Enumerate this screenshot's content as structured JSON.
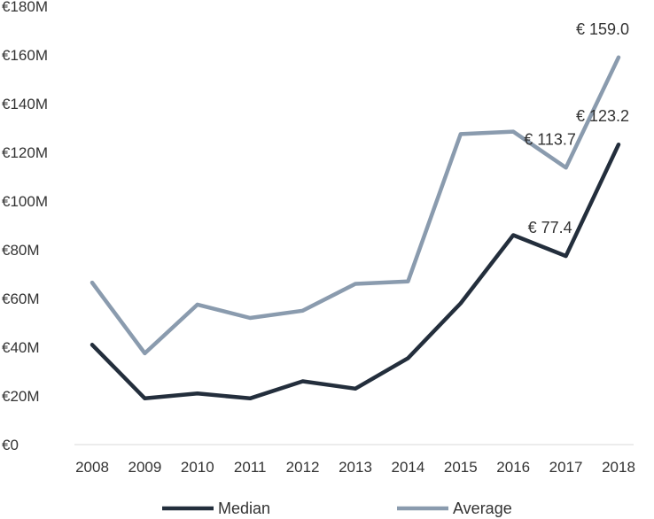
{
  "chart_data": {
    "type": "line",
    "title": "",
    "xlabel": "",
    "ylabel": "",
    "x": [
      "2008",
      "2009",
      "2010",
      "2011",
      "2012",
      "2013",
      "2014",
      "2015",
      "2016",
      "2017",
      "2018"
    ],
    "ylim": [
      0,
      180
    ],
    "y_ticks": [
      {
        "value": 0,
        "label": "€0"
      },
      {
        "value": 20,
        "label": "€20M"
      },
      {
        "value": 40,
        "label": "€40M"
      },
      {
        "value": 60,
        "label": "€60M"
      },
      {
        "value": 80,
        "label": "€80M"
      },
      {
        "value": 100,
        "label": "€100M"
      },
      {
        "value": 120,
        "label": "€120M"
      },
      {
        "value": 140,
        "label": "€140M"
      },
      {
        "value": 160,
        "label": "€160M"
      },
      {
        "value": 180,
        "label": "€180M"
      }
    ],
    "grid": false,
    "legend_position": "bottom",
    "series": [
      {
        "name": "Median",
        "color": "#232e3c",
        "values": [
          41,
          19,
          21,
          19,
          26,
          23,
          35.5,
          58,
          86,
          77.4,
          123.2
        ],
        "labels": [
          {
            "index": 9,
            "text": "€ 77.4"
          },
          {
            "index": 10,
            "text": "€ 123.2"
          }
        ]
      },
      {
        "name": "Average",
        "color": "#8a9bae",
        "values": [
          66.5,
          37.5,
          57.5,
          52,
          55,
          66,
          67,
          127.5,
          128.5,
          113.7,
          159.0
        ],
        "labels": [
          {
            "index": 9,
            "text": "€ 113.7"
          },
          {
            "index": 10,
            "text": "€ 159.0"
          }
        ]
      }
    ]
  }
}
